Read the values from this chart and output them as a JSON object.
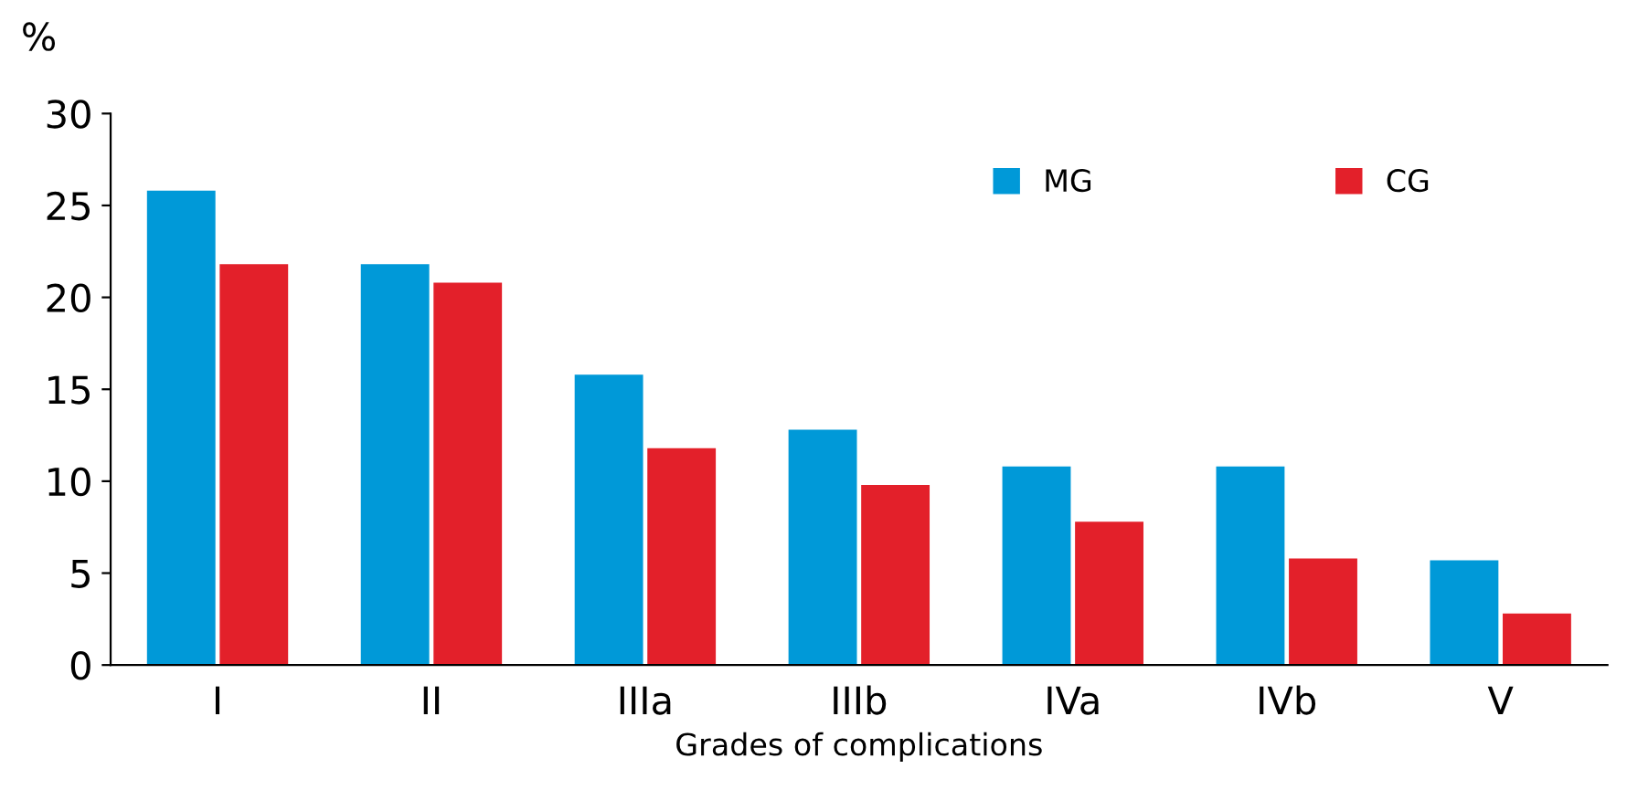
{
  "chart_data": {
    "type": "bar",
    "ylabel": "%",
    "xlabel": "Grades of complications",
    "categories": [
      "I",
      "II",
      "IIIa",
      "IIIb",
      "IVa",
      "IVb",
      "V"
    ],
    "series": [
      {
        "name": "MG",
        "color": "#0099d8",
        "values": [
          25.8,
          21.8,
          15.8,
          12.8,
          10.8,
          10.8,
          5.7
        ]
      },
      {
        "name": "CG",
        "color": "#e3202a",
        "values": [
          21.8,
          20.8,
          11.8,
          9.8,
          7.8,
          5.8,
          2.8
        ]
      }
    ],
    "ylim": [
      0,
      30
    ],
    "yticks": [
      0,
      5,
      10,
      15,
      20,
      25,
      30
    ],
    "grid": false,
    "legend": "top right"
  }
}
